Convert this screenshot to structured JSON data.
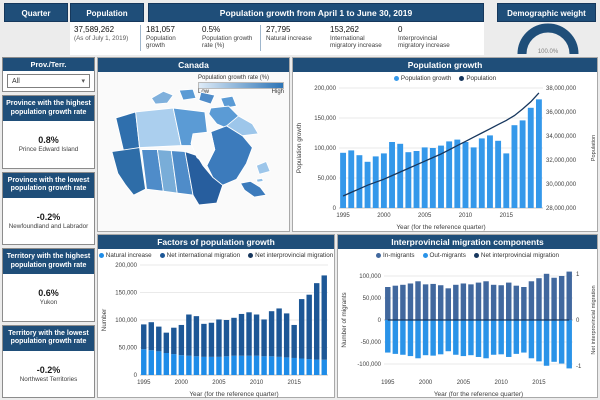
{
  "colors": {
    "navy": "#1F4E79",
    "bright_blue": "#3498EA",
    "dark_blue": "#1D5796",
    "slate_blue": "#41689E",
    "line_navy": "#17375E",
    "legend_gradient_start": "#DEEBF7",
    "legend_gradient_end": "#2E75B6"
  },
  "header": {
    "quarter_label": "Quarter",
    "population_label": "Population",
    "growth_title": "Population growth from April 1 to June 30, 2019",
    "demographic_label": "Demographic weight",
    "population_value": "37,589,262",
    "population_note": "(As of July 1, 2019)",
    "metrics": [
      {
        "value": "181,057",
        "label": "Population growth"
      },
      {
        "value": "0.5%",
        "label": "Population growth rate (%)"
      },
      {
        "value": "27,795",
        "label": "Natural increase"
      },
      {
        "value": "153,262",
        "label": "International migratory increase"
      },
      {
        "value": "0",
        "label": "Interprovincial migratory increase"
      }
    ],
    "gauge_value": "100.0%"
  },
  "sidebar": {
    "filter_label": "Prov./Terr.",
    "filter_value": "All",
    "cards": [
      {
        "title": "Province with the highest population growth rate",
        "value": "0.8%",
        "name": "Prince Edward Island"
      },
      {
        "title": "Province with the lowest population growth rate",
        "value": "-0.2%",
        "name": "Newfoundland and Labrador"
      },
      {
        "title": "Territory with the highest population growth rate",
        "value": "0.6%",
        "name": "Yukon"
      },
      {
        "title": "Territory with the lowest population growth rate",
        "value": "-0.2%",
        "name": "Northwest Territories"
      }
    ]
  },
  "map": {
    "title": "Canada",
    "legend_title": "Population growth rate (%)",
    "legend_low": "Low",
    "legend_high": "High"
  },
  "chart_data": [
    {
      "id": "population_growth",
      "type": "bar",
      "title": "Population growth",
      "stacked": false,
      "x": [
        1995,
        1996,
        1997,
        1998,
        1999,
        2000,
        2001,
        2002,
        2003,
        2004,
        2005,
        2006,
        2007,
        2008,
        2009,
        2010,
        2011,
        2012,
        2013,
        2014,
        2015,
        2016,
        2017,
        2018,
        2019
      ],
      "xticks": [
        1995,
        2000,
        2005,
        2010,
        2015
      ],
      "xlabel": "Year (for the reference quarter)",
      "ylabel_left": "Population growth",
      "ylabel_right": "Population",
      "ylim_left": [
        0,
        200000
      ],
      "yticks_left": [
        0,
        50000,
        100000,
        150000,
        200000
      ],
      "ylim_right": [
        28000000,
        38000000
      ],
      "yticks_right": [
        28000000,
        30000000,
        32000000,
        34000000,
        36000000,
        38000000
      ],
      "series": [
        {
          "name": "Population growth",
          "type": "bar",
          "axis": "left",
          "color": "#3498EA",
          "values": [
            92000,
            96000,
            88000,
            77000,
            86000,
            91000,
            110000,
            107000,
            93000,
            95000,
            101000,
            100000,
            104000,
            111000,
            114000,
            110000,
            101000,
            116000,
            121000,
            112000,
            91000,
            138000,
            146000,
            167000,
            181057
          ]
        },
        {
          "name": "Population",
          "type": "line",
          "axis": "right",
          "color": "#17375E",
          "values": [
            29000000,
            29300000,
            29600000,
            29900000,
            30150000,
            30400000,
            30700000,
            31000000,
            31300000,
            31600000,
            31900000,
            32200000,
            32500000,
            32850000,
            33200000,
            33550000,
            33900000,
            34250000,
            34600000,
            34950000,
            35300000,
            35700000,
            36250000,
            36850000,
            37589262
          ]
        }
      ]
    },
    {
      "id": "factors",
      "type": "bar",
      "title": "Factors of population growth",
      "stacked": true,
      "x": [
        1995,
        1996,
        1997,
        1998,
        1999,
        2000,
        2001,
        2002,
        2003,
        2004,
        2005,
        2006,
        2007,
        2008,
        2009,
        2010,
        2011,
        2012,
        2013,
        2014,
        2015,
        2016,
        2017,
        2018,
        2019
      ],
      "xticks": [
        1995,
        2000,
        2005,
        2010,
        2015
      ],
      "xlabel": "Year (for the reference quarter)",
      "ylabel_left": "Number",
      "ylim_left": [
        0,
        200000
      ],
      "yticks_left": [
        0,
        50000,
        100000,
        150000,
        200000
      ],
      "series": [
        {
          "name": "Natural increase",
          "type": "bar",
          "axis": "left",
          "color": "#1E8CE8",
          "values": [
            47000,
            45000,
            43000,
            40000,
            38000,
            36000,
            35000,
            34000,
            33000,
            33000,
            33000,
            34000,
            35000,
            35000,
            35000,
            35000,
            34000,
            34000,
            33000,
            32000,
            31000,
            30000,
            29000,
            28000,
            27795
          ]
        },
        {
          "name": "Net international migration",
          "type": "bar",
          "axis": "left",
          "color": "#1D5796",
          "values": [
            45000,
            51000,
            45000,
            37000,
            48000,
            55000,
            75000,
            73000,
            60000,
            62000,
            68000,
            66000,
            69000,
            76000,
            79000,
            75000,
            67000,
            82000,
            88000,
            80000,
            60000,
            108000,
            117000,
            139000,
            153262
          ]
        },
        {
          "name": "Net interprovincial migration",
          "type": "bar",
          "axis": "left",
          "color": "#17375E",
          "values": [
            0,
            0,
            0,
            0,
            0,
            0,
            0,
            0,
            0,
            0,
            0,
            0,
            0,
            0,
            0,
            0,
            0,
            0,
            0,
            0,
            0,
            0,
            0,
            0,
            0
          ]
        }
      ]
    },
    {
      "id": "interprovincial",
      "type": "bar",
      "title": "Interprovincial migration components",
      "stacked": false,
      "x": [
        1995,
        1996,
        1997,
        1998,
        1999,
        2000,
        2001,
        2002,
        2003,
        2004,
        2005,
        2006,
        2007,
        2008,
        2009,
        2010,
        2011,
        2012,
        2013,
        2014,
        2015,
        2016,
        2017,
        2018,
        2019
      ],
      "xticks": [
        1995,
        2000,
        2005,
        2010,
        2015
      ],
      "xlabel": "Year (for the reference quarter)",
      "ylabel_left": "Number of migrants",
      "ylabel_right": "Net interprovincial migration",
      "ylim_left": [
        -125000,
        125000
      ],
      "yticks_left": [
        -100000,
        -50000,
        0,
        50000,
        100000
      ],
      "ylim_right": [
        -1.2,
        1.2
      ],
      "yticks_right": [
        1,
        0,
        -1
      ],
      "series": [
        {
          "name": "In-migrants",
          "type": "bar",
          "axis": "left",
          "color": "#41689E",
          "values": [
            75000,
            78000,
            80000,
            83000,
            88000,
            81000,
            82000,
            79000,
            72000,
            80000,
            83000,
            81000,
            85000,
            88000,
            80000,
            79000,
            85000,
            78000,
            75000,
            88000,
            95000,
            105000,
            96000,
            100000,
            110000
          ]
        },
        {
          "name": "Out-migrants",
          "type": "bar",
          "axis": "left",
          "color": "#2A93E8",
          "values": [
            -74000,
            -77000,
            -79000,
            -82000,
            -87000,
            -80000,
            -81000,
            -78000,
            -71000,
            -79000,
            -82000,
            -80000,
            -84000,
            -87000,
            -79000,
            -78000,
            -84000,
            -77000,
            -74000,
            -87000,
            -94000,
            -104000,
            -95000,
            -99000,
            -110000
          ]
        },
        {
          "name": "Net interprovincial migration",
          "type": "line",
          "axis": "right",
          "color": "#17375E",
          "values": [
            0,
            0,
            0,
            0,
            0,
            0,
            0,
            0,
            0,
            0,
            0,
            0,
            0,
            0,
            0,
            0,
            0,
            0,
            0,
            0,
            0,
            0,
            0,
            0,
            0
          ]
        }
      ]
    }
  ]
}
